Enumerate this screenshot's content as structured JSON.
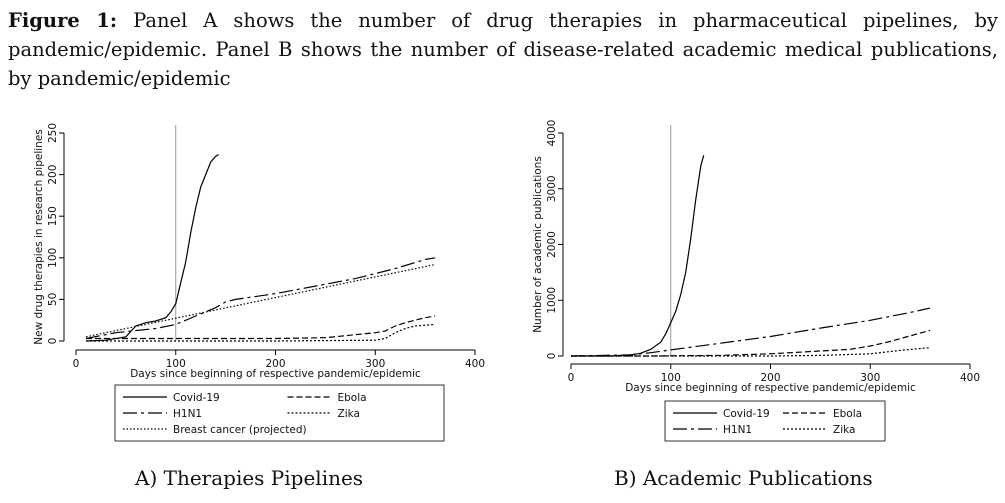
{
  "caption": {
    "label": "Figure 1:",
    "text": "Panel A shows the number of drug therapies in pharmaceutical pipelines, by pandemic/epidemic. Panel B shows the number of disease-related academic medical publications, by pandemic/epidemic"
  },
  "panel_labels": [
    "A) Therapies Pipelines",
    "B) Academic Publications"
  ],
  "chart_data": [
    {
      "type": "line",
      "xlabel": "Days since beginning of respective pandemic/epidemic",
      "ylabel": "New drug therapies in research pipelines",
      "xlim": [
        0,
        400
      ],
      "ylim": [
        0,
        250
      ],
      "xticks": [
        0,
        100,
        200,
        300,
        400
      ],
      "yticks": [
        0,
        50,
        100,
        150,
        200,
        250
      ],
      "vline": 100,
      "legend": "bottom",
      "series": [
        {
          "name": "Covid-19",
          "style": "solid",
          "x": [
            10,
            30,
            50,
            60,
            70,
            80,
            90,
            95,
            100,
            105,
            110,
            115,
            120,
            125,
            130,
            135,
            140,
            143
          ],
          "y": [
            0,
            1,
            5,
            18,
            22,
            24,
            28,
            35,
            45,
            70,
            95,
            130,
            160,
            185,
            200,
            215,
            222,
            224
          ]
        },
        {
          "name": "Ebola",
          "style": "dash",
          "x": [
            10,
            50,
            100,
            200,
            250,
            300,
            310,
            320,
            330,
            340,
            350,
            360
          ],
          "y": [
            3,
            3,
            3,
            3,
            4,
            10,
            12,
            18,
            22,
            25,
            28,
            30
          ]
        },
        {
          "name": "H1N1",
          "style": "longdash",
          "x": [
            10,
            40,
            80,
            100,
            120,
            140,
            150,
            160,
            200,
            240,
            280,
            320,
            350,
            360
          ],
          "y": [
            3,
            10,
            15,
            20,
            30,
            40,
            47,
            50,
            57,
            66,
            75,
            87,
            98,
            100
          ]
        },
        {
          "name": "Zika",
          "style": "dot",
          "x": [
            10,
            100,
            200,
            300,
            310,
            320,
            330,
            340,
            360
          ],
          "y": [
            0,
            0,
            0,
            1,
            3,
            10,
            15,
            18,
            20
          ]
        },
        {
          "name": "Breast cancer (projected)",
          "style": "dot-light",
          "x": [
            10,
            360
          ],
          "y": [
            5,
            92
          ]
        }
      ]
    },
    {
      "type": "line",
      "xlabel": "Days since beginning of respective pandemic/epidemic",
      "ylabel": "Number of academic publications",
      "xlim": [
        0,
        400
      ],
      "ylim": [
        0,
        4000
      ],
      "xticks": [
        0,
        100,
        200,
        300,
        400
      ],
      "yticks": [
        0,
        1000,
        2000,
        3000,
        4000
      ],
      "vline": 100,
      "legend": "bottom",
      "series": [
        {
          "name": "Covid-19",
          "style": "solid",
          "x": [
            0,
            40,
            60,
            70,
            80,
            90,
            95,
            100,
            105,
            110,
            115,
            120,
            125,
            130,
            133
          ],
          "y": [
            0,
            0,
            20,
            50,
            120,
            250,
            400,
            600,
            800,
            1100,
            1500,
            2100,
            2800,
            3400,
            3600
          ]
        },
        {
          "name": "Ebola",
          "style": "dash",
          "x": [
            0,
            80,
            150,
            200,
            250,
            280,
            300,
            320,
            340,
            360
          ],
          "y": [
            0,
            0,
            10,
            40,
            90,
            120,
            180,
            260,
            360,
            460
          ]
        },
        {
          "name": "H1N1",
          "style": "longdash",
          "x": [
            0,
            60,
            80,
            100,
            150,
            200,
            250,
            300,
            340,
            360
          ],
          "y": [
            0,
            20,
            60,
            110,
            230,
            350,
            500,
            640,
            780,
            860
          ]
        },
        {
          "name": "Zika",
          "style": "dot",
          "x": [
            0,
            100,
            200,
            250,
            300,
            330,
            360
          ],
          "y": [
            0,
            0,
            0,
            10,
            40,
            100,
            150
          ]
        }
      ]
    }
  ]
}
